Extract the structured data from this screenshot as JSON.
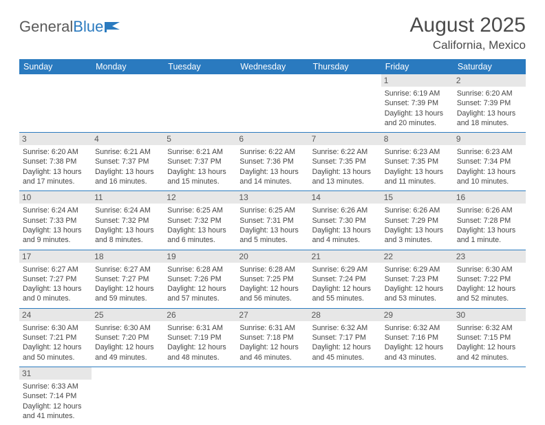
{
  "logo": {
    "text1": "General",
    "text2": "Blue"
  },
  "title": "August 2025",
  "location": "California, Mexico",
  "colors": {
    "accent": "#2a7abf",
    "dayhead": "#e7e7e7",
    "text": "#444"
  },
  "daysOfWeek": [
    "Sunday",
    "Monday",
    "Tuesday",
    "Wednesday",
    "Thursday",
    "Friday",
    "Saturday"
  ],
  "weeks": [
    [
      null,
      null,
      null,
      null,
      null,
      {
        "n": "1",
        "sr": "Sunrise: 6:19 AM",
        "ss": "Sunset: 7:39 PM",
        "dl": "Daylight: 13 hours and 20 minutes."
      },
      {
        "n": "2",
        "sr": "Sunrise: 6:20 AM",
        "ss": "Sunset: 7:39 PM",
        "dl": "Daylight: 13 hours and 18 minutes."
      }
    ],
    [
      {
        "n": "3",
        "sr": "Sunrise: 6:20 AM",
        "ss": "Sunset: 7:38 PM",
        "dl": "Daylight: 13 hours and 17 minutes."
      },
      {
        "n": "4",
        "sr": "Sunrise: 6:21 AM",
        "ss": "Sunset: 7:37 PM",
        "dl": "Daylight: 13 hours and 16 minutes."
      },
      {
        "n": "5",
        "sr": "Sunrise: 6:21 AM",
        "ss": "Sunset: 7:37 PM",
        "dl": "Daylight: 13 hours and 15 minutes."
      },
      {
        "n": "6",
        "sr": "Sunrise: 6:22 AM",
        "ss": "Sunset: 7:36 PM",
        "dl": "Daylight: 13 hours and 14 minutes."
      },
      {
        "n": "7",
        "sr": "Sunrise: 6:22 AM",
        "ss": "Sunset: 7:35 PM",
        "dl": "Daylight: 13 hours and 13 minutes."
      },
      {
        "n": "8",
        "sr": "Sunrise: 6:23 AM",
        "ss": "Sunset: 7:35 PM",
        "dl": "Daylight: 13 hours and 11 minutes."
      },
      {
        "n": "9",
        "sr": "Sunrise: 6:23 AM",
        "ss": "Sunset: 7:34 PM",
        "dl": "Daylight: 13 hours and 10 minutes."
      }
    ],
    [
      {
        "n": "10",
        "sr": "Sunrise: 6:24 AM",
        "ss": "Sunset: 7:33 PM",
        "dl": "Daylight: 13 hours and 9 minutes."
      },
      {
        "n": "11",
        "sr": "Sunrise: 6:24 AM",
        "ss": "Sunset: 7:32 PM",
        "dl": "Daylight: 13 hours and 8 minutes."
      },
      {
        "n": "12",
        "sr": "Sunrise: 6:25 AM",
        "ss": "Sunset: 7:32 PM",
        "dl": "Daylight: 13 hours and 6 minutes."
      },
      {
        "n": "13",
        "sr": "Sunrise: 6:25 AM",
        "ss": "Sunset: 7:31 PM",
        "dl": "Daylight: 13 hours and 5 minutes."
      },
      {
        "n": "14",
        "sr": "Sunrise: 6:26 AM",
        "ss": "Sunset: 7:30 PM",
        "dl": "Daylight: 13 hours and 4 minutes."
      },
      {
        "n": "15",
        "sr": "Sunrise: 6:26 AM",
        "ss": "Sunset: 7:29 PM",
        "dl": "Daylight: 13 hours and 3 minutes."
      },
      {
        "n": "16",
        "sr": "Sunrise: 6:26 AM",
        "ss": "Sunset: 7:28 PM",
        "dl": "Daylight: 13 hours and 1 minute."
      }
    ],
    [
      {
        "n": "17",
        "sr": "Sunrise: 6:27 AM",
        "ss": "Sunset: 7:27 PM",
        "dl": "Daylight: 13 hours and 0 minutes."
      },
      {
        "n": "18",
        "sr": "Sunrise: 6:27 AM",
        "ss": "Sunset: 7:27 PM",
        "dl": "Daylight: 12 hours and 59 minutes."
      },
      {
        "n": "19",
        "sr": "Sunrise: 6:28 AM",
        "ss": "Sunset: 7:26 PM",
        "dl": "Daylight: 12 hours and 57 minutes."
      },
      {
        "n": "20",
        "sr": "Sunrise: 6:28 AM",
        "ss": "Sunset: 7:25 PM",
        "dl": "Daylight: 12 hours and 56 minutes."
      },
      {
        "n": "21",
        "sr": "Sunrise: 6:29 AM",
        "ss": "Sunset: 7:24 PM",
        "dl": "Daylight: 12 hours and 55 minutes."
      },
      {
        "n": "22",
        "sr": "Sunrise: 6:29 AM",
        "ss": "Sunset: 7:23 PM",
        "dl": "Daylight: 12 hours and 53 minutes."
      },
      {
        "n": "23",
        "sr": "Sunrise: 6:30 AM",
        "ss": "Sunset: 7:22 PM",
        "dl": "Daylight: 12 hours and 52 minutes."
      }
    ],
    [
      {
        "n": "24",
        "sr": "Sunrise: 6:30 AM",
        "ss": "Sunset: 7:21 PM",
        "dl": "Daylight: 12 hours and 50 minutes."
      },
      {
        "n": "25",
        "sr": "Sunrise: 6:30 AM",
        "ss": "Sunset: 7:20 PM",
        "dl": "Daylight: 12 hours and 49 minutes."
      },
      {
        "n": "26",
        "sr": "Sunrise: 6:31 AM",
        "ss": "Sunset: 7:19 PM",
        "dl": "Daylight: 12 hours and 48 minutes."
      },
      {
        "n": "27",
        "sr": "Sunrise: 6:31 AM",
        "ss": "Sunset: 7:18 PM",
        "dl": "Daylight: 12 hours and 46 minutes."
      },
      {
        "n": "28",
        "sr": "Sunrise: 6:32 AM",
        "ss": "Sunset: 7:17 PM",
        "dl": "Daylight: 12 hours and 45 minutes."
      },
      {
        "n": "29",
        "sr": "Sunrise: 6:32 AM",
        "ss": "Sunset: 7:16 PM",
        "dl": "Daylight: 12 hours and 43 minutes."
      },
      {
        "n": "30",
        "sr": "Sunrise: 6:32 AM",
        "ss": "Sunset: 7:15 PM",
        "dl": "Daylight: 12 hours and 42 minutes."
      }
    ],
    [
      {
        "n": "31",
        "sr": "Sunrise: 6:33 AM",
        "ss": "Sunset: 7:14 PM",
        "dl": "Daylight: 12 hours and 41 minutes."
      },
      null,
      null,
      null,
      null,
      null,
      null
    ]
  ]
}
